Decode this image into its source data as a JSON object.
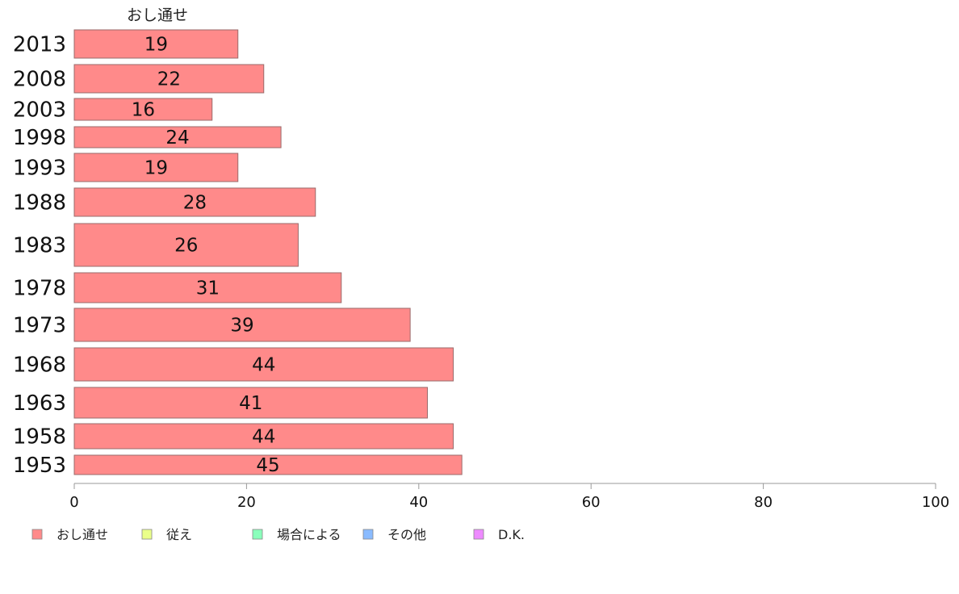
{
  "chart_data": {
    "type": "bar",
    "orientation": "horizontal",
    "stacked": true,
    "categories": [
      "2013",
      "2008",
      "2003",
      "1998",
      "1993",
      "1988",
      "1983",
      "1978",
      "1973",
      "1968",
      "1963",
      "1958",
      "1953"
    ],
    "series": [
      {
        "name": "おし通せ",
        "color": "#ff8a8a",
        "values": [
          19,
          22,
          16,
          24,
          19,
          28,
          26,
          31,
          39,
          44,
          41,
          44,
          45
        ]
      }
    ],
    "legend": [
      {
        "name": "おし通せ",
        "color": "#ff8a8a"
      },
      {
        "name": "従え",
        "color": "#eaff8a"
      },
      {
        "name": "場合による",
        "color": "#8affbb"
      },
      {
        "name": "その他",
        "color": "#8abbff"
      },
      {
        "name": "D.K.",
        "color": "#ee8aff"
      }
    ],
    "series_header": "おし通せ",
    "xlim": [
      0,
      100
    ],
    "xticks": [
      0,
      20,
      40,
      60,
      80,
      100
    ],
    "grid": false,
    "legend_position": "bottom"
  }
}
